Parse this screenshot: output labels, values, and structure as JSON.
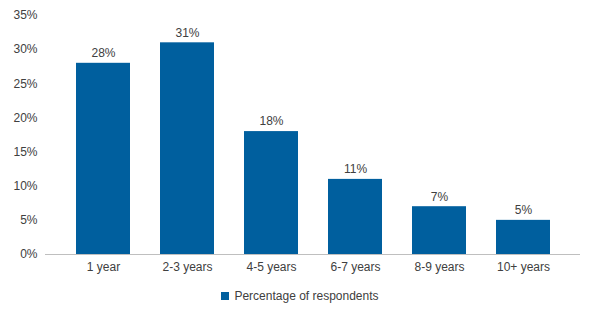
{
  "chart_data": {
    "type": "bar",
    "categories": [
      "1 year",
      "2-3 years",
      "4-5 years",
      "6-7 years",
      "8-9 years",
      "10+ years"
    ],
    "series": [
      {
        "name": "Percentage of respondents",
        "color": "#005f9e",
        "values": [
          28,
          31,
          18,
          11,
          7,
          5
        ],
        "value_labels": [
          "28%",
          "31%",
          "18%",
          "11%",
          "7%",
          "5%"
        ]
      }
    ],
    "ylim": [
      0,
      35
    ],
    "yticks": [
      {
        "value": 0,
        "label": "0%"
      },
      {
        "value": 5,
        "label": "5%"
      },
      {
        "value": 10,
        "label": "10%"
      },
      {
        "value": 15,
        "label": "15%"
      },
      {
        "value": 20,
        "label": "20%"
      },
      {
        "value": 25,
        "label": "25%"
      },
      {
        "value": 30,
        "label": "30%"
      },
      {
        "value": 35,
        "label": "35%"
      }
    ],
    "grid": false,
    "data_labels": true,
    "legend": "bottom"
  }
}
